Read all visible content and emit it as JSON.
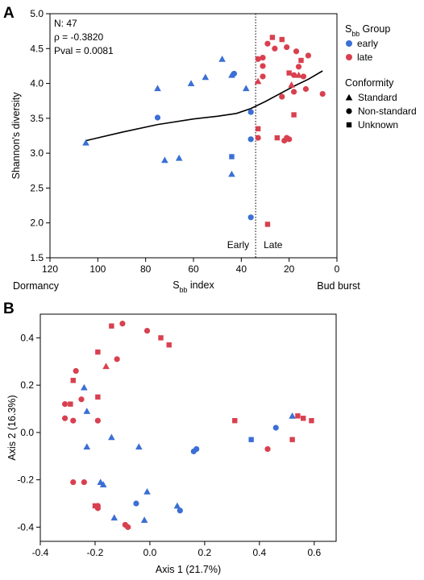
{
  "chart_data": [
    {
      "panel": "A",
      "type": "scatter",
      "xlabel": "S|bb| index",
      "ylabel": "Shannon's diversity",
      "xlim": [
        120,
        0
      ],
      "ylim": [
        1.5,
        5.0
      ],
      "x_reversed": true,
      "xticks": [
        120,
        100,
        80,
        60,
        40,
        20,
        0
      ],
      "yticks": [
        1.5,
        2.0,
        2.5,
        3.0,
        3.5,
        4.0,
        4.5,
        5.0
      ],
      "grid": false,
      "x_end_labels": {
        "left": "Dormancy",
        "right": "Bud burst"
      },
      "stats": {
        "n": "N: 47",
        "rho": "ρ = -0.3820",
        "pval": "Pval = 0.0081"
      },
      "threshold": {
        "x": 34,
        "style": "dotted",
        "left_label": "Early",
        "right_label": "Late"
      },
      "colors": {
        "early": "#3b6fd4",
        "late": "#d9404f"
      },
      "legend": {
        "placement": "right",
        "group_title": "S|bb| Group",
        "groups": [
          {
            "name": "early",
            "color": "#3b6fd4"
          },
          {
            "name": "late",
            "color": "#d9404f"
          }
        ],
        "conformity_title": "Conformity",
        "shapes": [
          {
            "name": "Standard",
            "shape": "triangle"
          },
          {
            "name": "Non-standard",
            "shape": "circle"
          },
          {
            "name": "Unknown",
            "shape": "square"
          }
        ]
      },
      "trend_line": [
        [
          105,
          3.18
        ],
        [
          90,
          3.3
        ],
        [
          75,
          3.41
        ],
        [
          60,
          3.49
        ],
        [
          50,
          3.53
        ],
        [
          42,
          3.57
        ],
        [
          36,
          3.64
        ],
        [
          30,
          3.74
        ],
        [
          24,
          3.85
        ],
        [
          18,
          3.96
        ],
        [
          12,
          4.06
        ],
        [
          6,
          4.18
        ]
      ],
      "points": [
        {
          "x": 105,
          "y": 3.15,
          "group": "early",
          "shape": "triangle"
        },
        {
          "x": 75,
          "y": 3.93,
          "group": "early",
          "shape": "triangle"
        },
        {
          "x": 75,
          "y": 3.51,
          "group": "early",
          "shape": "circle"
        },
        {
          "x": 72,
          "y": 2.9,
          "group": "early",
          "shape": "triangle"
        },
        {
          "x": 66,
          "y": 2.93,
          "group": "early",
          "shape": "triangle"
        },
        {
          "x": 61,
          "y": 4.0,
          "group": "early",
          "shape": "triangle"
        },
        {
          "x": 55,
          "y": 4.09,
          "group": "early",
          "shape": "triangle"
        },
        {
          "x": 48,
          "y": 4.35,
          "group": "early",
          "shape": "triangle"
        },
        {
          "x": 44,
          "y": 4.12,
          "group": "early",
          "shape": "triangle"
        },
        {
          "x": 43,
          "y": 4.14,
          "group": "early",
          "shape": "circle"
        },
        {
          "x": 44,
          "y": 2.95,
          "group": "early",
          "shape": "square"
        },
        {
          "x": 44,
          "y": 2.7,
          "group": "early",
          "shape": "triangle"
        },
        {
          "x": 38,
          "y": 3.93,
          "group": "early",
          "shape": "triangle"
        },
        {
          "x": 36,
          "y": 3.59,
          "group": "early",
          "shape": "circle"
        },
        {
          "x": 36,
          "y": 3.2,
          "group": "early",
          "shape": "circle"
        },
        {
          "x": 36,
          "y": 2.08,
          "group": "early",
          "shape": "circle"
        },
        {
          "x": 33,
          "y": 4.35,
          "group": "late",
          "shape": "circle"
        },
        {
          "x": 33,
          "y": 4.03,
          "group": "late",
          "shape": "triangle"
        },
        {
          "x": 33,
          "y": 3.35,
          "group": "late",
          "shape": "square"
        },
        {
          "x": 33,
          "y": 3.22,
          "group": "late",
          "shape": "circle"
        },
        {
          "x": 31,
          "y": 4.37,
          "group": "late",
          "shape": "circle"
        },
        {
          "x": 31,
          "y": 4.25,
          "group": "late",
          "shape": "circle"
        },
        {
          "x": 31,
          "y": 4.1,
          "group": "late",
          "shape": "circle"
        },
        {
          "x": 29,
          "y": 4.57,
          "group": "late",
          "shape": "circle"
        },
        {
          "x": 29,
          "y": 1.98,
          "group": "late",
          "shape": "square"
        },
        {
          "x": 27,
          "y": 4.66,
          "group": "late",
          "shape": "square"
        },
        {
          "x": 26,
          "y": 4.5,
          "group": "late",
          "shape": "circle"
        },
        {
          "x": 25,
          "y": 3.22,
          "group": "late",
          "shape": "square"
        },
        {
          "x": 23,
          "y": 4.63,
          "group": "late",
          "shape": "square"
        },
        {
          "x": 23,
          "y": 3.81,
          "group": "late",
          "shape": "circle"
        },
        {
          "x": 22,
          "y": 3.18,
          "group": "late",
          "shape": "circle"
        },
        {
          "x": 21,
          "y": 4.52,
          "group": "late",
          "shape": "circle"
        },
        {
          "x": 21,
          "y": 3.22,
          "group": "late",
          "shape": "circle"
        },
        {
          "x": 20,
          "y": 4.15,
          "group": "late",
          "shape": "square"
        },
        {
          "x": 20,
          "y": 3.2,
          "group": "late",
          "shape": "circle"
        },
        {
          "x": 19,
          "y": 3.98,
          "group": "late",
          "shape": "triangle"
        },
        {
          "x": 18,
          "y": 4.12,
          "group": "late",
          "shape": "circle"
        },
        {
          "x": 18,
          "y": 3.88,
          "group": "late",
          "shape": "circle"
        },
        {
          "x": 18,
          "y": 3.55,
          "group": "late",
          "shape": "square"
        },
        {
          "x": 17,
          "y": 4.46,
          "group": "late",
          "shape": "circle"
        },
        {
          "x": 16,
          "y": 4.24,
          "group": "late",
          "shape": "circle"
        },
        {
          "x": 16,
          "y": 4.12,
          "group": "late",
          "shape": "triangle"
        },
        {
          "x": 15,
          "y": 4.33,
          "group": "late",
          "shape": "square"
        },
        {
          "x": 14,
          "y": 4.1,
          "group": "late",
          "shape": "circle"
        },
        {
          "x": 13,
          "y": 3.92,
          "group": "late",
          "shape": "circle"
        },
        {
          "x": 12,
          "y": 4.4,
          "group": "late",
          "shape": "circle"
        },
        {
          "x": 6,
          "y": 3.85,
          "group": "late",
          "shape": "circle"
        }
      ]
    },
    {
      "panel": "B",
      "type": "scatter",
      "xlabel": "Axis 1 (21.7%)",
      "ylabel": "Axis 2 (16.3%)",
      "xlim": [
        -0.4,
        0.68
      ],
      "ylim": [
        -0.46,
        0.5
      ],
      "xticks": [
        -0.4,
        -0.2,
        0.0,
        0.2,
        0.4,
        0.6
      ],
      "xtick_labels": [
        "-0.4",
        "-0.2",
        "0.0",
        "0.2",
        "0.4",
        "0.6"
      ],
      "yticks": [
        -0.4,
        -0.2,
        0.0,
        0.2,
        0.4
      ],
      "ytick_labels": [
        "-0.4",
        "-0.2",
        "0.0",
        "0.2",
        "0.4"
      ],
      "grid": false,
      "points": [
        {
          "x": -0.14,
          "y": 0.45,
          "group": "late",
          "shape": "square"
        },
        {
          "x": -0.1,
          "y": 0.46,
          "group": "late",
          "shape": "circle"
        },
        {
          "x": -0.01,
          "y": 0.43,
          "group": "late",
          "shape": "circle"
        },
        {
          "x": 0.04,
          "y": 0.4,
          "group": "late",
          "shape": "square"
        },
        {
          "x": 0.07,
          "y": 0.37,
          "group": "late",
          "shape": "square"
        },
        {
          "x": -0.19,
          "y": 0.34,
          "group": "late",
          "shape": "square"
        },
        {
          "x": -0.12,
          "y": 0.31,
          "group": "late",
          "shape": "circle"
        },
        {
          "x": -0.16,
          "y": 0.28,
          "group": "late",
          "shape": "triangle"
        },
        {
          "x": -0.27,
          "y": 0.26,
          "group": "late",
          "shape": "circle"
        },
        {
          "x": -0.28,
          "y": 0.22,
          "group": "late",
          "shape": "square"
        },
        {
          "x": -0.26,
          "y": 0.19,
          "group": "blank",
          "shape": "none"
        },
        {
          "x": -0.24,
          "y": 0.19,
          "group": "early",
          "shape": "triangle"
        },
        {
          "x": -0.19,
          "y": 0.15,
          "group": "late",
          "shape": "square"
        },
        {
          "x": -0.25,
          "y": 0.14,
          "group": "late",
          "shape": "circle"
        },
        {
          "x": -0.31,
          "y": 0.12,
          "group": "late",
          "shape": "circle"
        },
        {
          "x": -0.29,
          "y": 0.12,
          "group": "late",
          "shape": "square"
        },
        {
          "x": -0.23,
          "y": 0.09,
          "group": "early",
          "shape": "triangle"
        },
        {
          "x": -0.31,
          "y": 0.06,
          "group": "late",
          "shape": "circle"
        },
        {
          "x": -0.28,
          "y": 0.05,
          "group": "late",
          "shape": "circle"
        },
        {
          "x": -0.19,
          "y": 0.05,
          "group": "late",
          "shape": "circle"
        },
        {
          "x": -0.23,
          "y": -0.06,
          "group": "early",
          "shape": "triangle"
        },
        {
          "x": -0.14,
          "y": -0.02,
          "group": "early",
          "shape": "triangle"
        },
        {
          "x": -0.04,
          "y": -0.06,
          "group": "early",
          "shape": "triangle"
        },
        {
          "x": -0.28,
          "y": -0.21,
          "group": "late",
          "shape": "circle"
        },
        {
          "x": -0.24,
          "y": -0.21,
          "group": "late",
          "shape": "circle"
        },
        {
          "x": -0.18,
          "y": -0.21,
          "group": "early",
          "shape": "triangle"
        },
        {
          "x": -0.17,
          "y": -0.22,
          "group": "early",
          "shape": "triangle"
        },
        {
          "x": -0.2,
          "y": -0.31,
          "group": "late",
          "shape": "square"
        },
        {
          "x": -0.19,
          "y": -0.31,
          "group": "late",
          "shape": "circle"
        },
        {
          "x": -0.19,
          "y": -0.32,
          "group": "late",
          "shape": "circle"
        },
        {
          "x": -0.01,
          "y": -0.25,
          "group": "early",
          "shape": "triangle"
        },
        {
          "x": -0.05,
          "y": -0.3,
          "group": "early",
          "shape": "circle"
        },
        {
          "x": -0.13,
          "y": -0.36,
          "group": "early",
          "shape": "triangle"
        },
        {
          "x": -0.09,
          "y": -0.39,
          "group": "late",
          "shape": "circle"
        },
        {
          "x": -0.08,
          "y": -0.4,
          "group": "late",
          "shape": "circle"
        },
        {
          "x": -0.02,
          "y": -0.37,
          "group": "early",
          "shape": "triangle"
        },
        {
          "x": 0.1,
          "y": -0.31,
          "group": "early",
          "shape": "triangle"
        },
        {
          "x": 0.11,
          "y": -0.33,
          "group": "early",
          "shape": "circle"
        },
        {
          "x": 0.17,
          "y": -0.07,
          "group": "early",
          "shape": "circle"
        },
        {
          "x": 0.16,
          "y": -0.08,
          "group": "early",
          "shape": "circle"
        },
        {
          "x": 0.31,
          "y": 0.05,
          "group": "late",
          "shape": "square"
        },
        {
          "x": 0.37,
          "y": -0.03,
          "group": "early",
          "shape": "square"
        },
        {
          "x": 0.43,
          "y": -0.07,
          "group": "late",
          "shape": "circle"
        },
        {
          "x": 0.46,
          "y": 0.02,
          "group": "early",
          "shape": "circle"
        },
        {
          "x": 0.52,
          "y": 0.07,
          "group": "early",
          "shape": "triangle"
        },
        {
          "x": 0.54,
          "y": 0.07,
          "group": "late",
          "shape": "square"
        },
        {
          "x": 0.56,
          "y": 0.06,
          "group": "late",
          "shape": "square"
        },
        {
          "x": 0.59,
          "y": 0.05,
          "group": "late",
          "shape": "square"
        },
        {
          "x": 0.52,
          "y": -0.03,
          "group": "late",
          "shape": "square"
        }
      ]
    }
  ]
}
